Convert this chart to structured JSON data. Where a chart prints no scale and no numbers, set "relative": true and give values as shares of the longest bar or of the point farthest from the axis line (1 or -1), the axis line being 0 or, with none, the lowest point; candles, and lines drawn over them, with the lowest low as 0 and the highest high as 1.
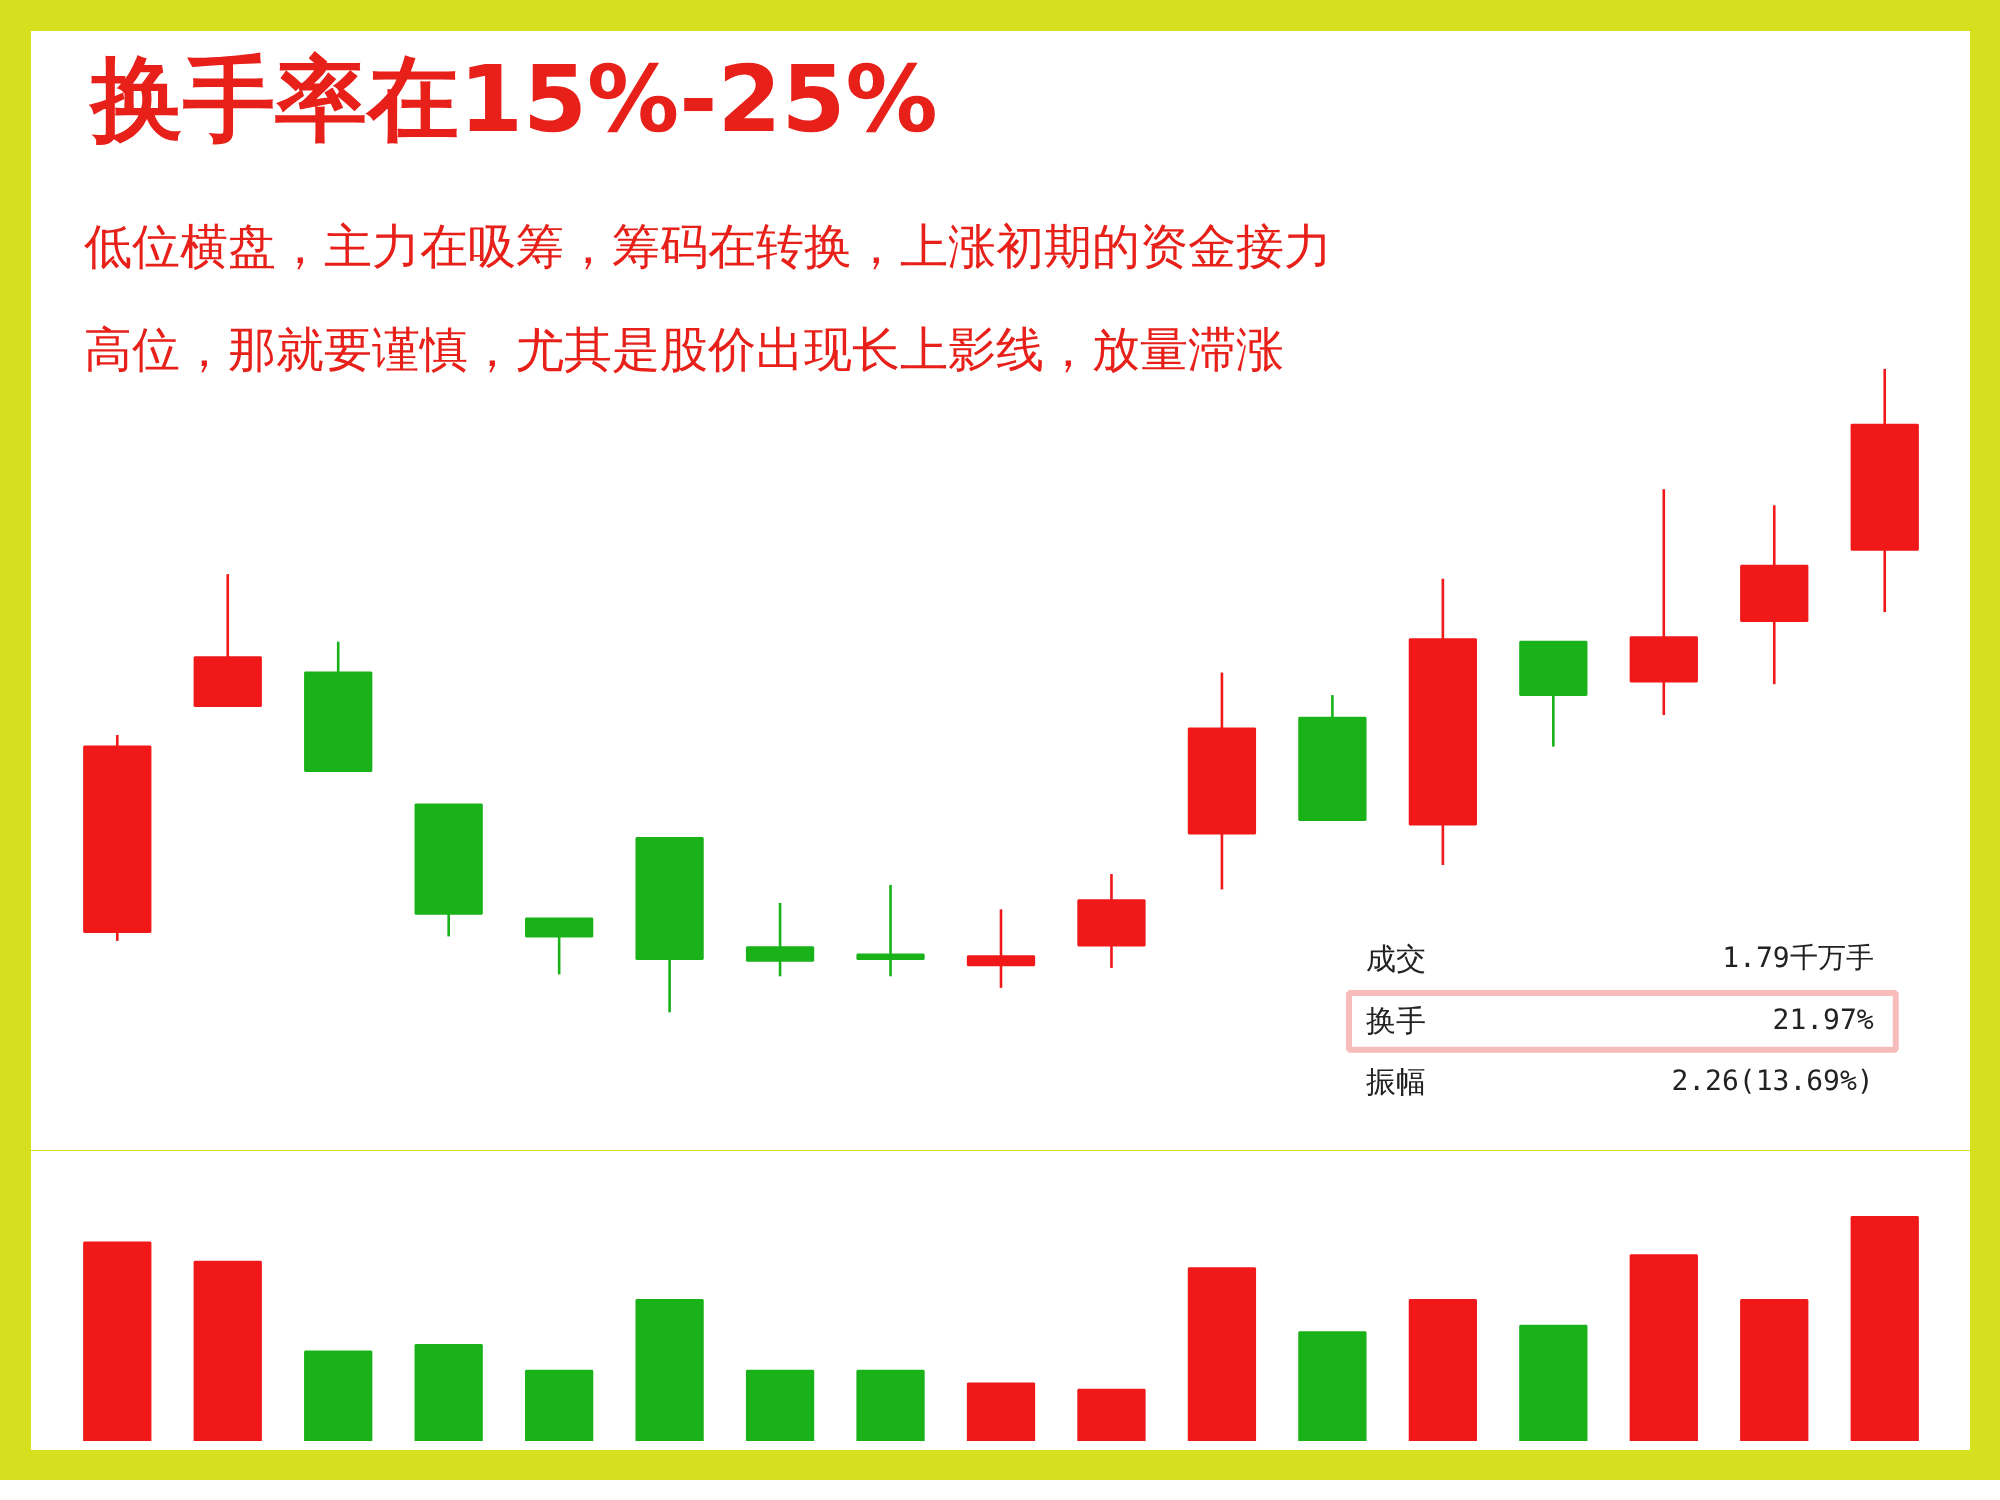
{
  "chart_data": [
    {
      "type": "candlestick",
      "title": "换手率在15%-25%",
      "subtitle": "低位横盘，主力在吸筹，筹码在转换，上涨初期的资金接力高位，那就要谨慎，尤其是股价出现长上影线，放量滞涨",
      "relative": true,
      "categories": [
        null,
        null,
        null,
        null,
        null,
        null,
        null,
        null,
        null,
        null,
        null,
        null,
        null,
        null,
        null,
        null,
        null
      ],
      "ohlc": [
        [
          0.125,
          0.431,
          0.111,
          0.413
        ],
        [
          0.476,
          0.681,
          0.476,
          0.552
        ],
        [
          0.528,
          0.576,
          0.375,
          0.375
        ],
        [
          0.323,
          0.323,
          0.118,
          0.153
        ],
        [
          0.146,
          0.146,
          0.059,
          0.118
        ],
        [
          0.271,
          0.271,
          0.0,
          0.083
        ],
        [
          0.101,
          0.17,
          0.056,
          0.08
        ],
        [
          0.09,
          0.198,
          0.056,
          0.083
        ],
        [
          0.073,
          0.16,
          0.038,
          0.087
        ],
        [
          0.104,
          0.215,
          0.069,
          0.174
        ],
        [
          0.278,
          0.528,
          0.191,
          0.441
        ],
        [
          0.458,
          0.493,
          0.299,
          0.299
        ],
        [
          0.292,
          0.674,
          0.229,
          0.58
        ],
        [
          0.576,
          0.576,
          0.413,
          0.493
        ],
        [
          0.514,
          0.813,
          0.462,
          0.583
        ],
        [
          0.608,
          0.788,
          0.51,
          0.694
        ],
        [
          0.719,
          1.0,
          0.622,
          0.913
        ]
      ],
      "colors": [
        "#f01818",
        "#f01818",
        "#19b219",
        "#19b219",
        "#19b219",
        "#19b219",
        "#19b219",
        "#19b219",
        "#f01818",
        "#f01818",
        "#f01818",
        "#19b219",
        "#f01818",
        "#19b219",
        "#f01818",
        "#f01818",
        "#f01818"
      ],
      "annotations": [
        "成交",
        "1.79千万手",
        "换手",
        "21.97%",
        "振幅",
        "2.26(13.69%)"
      ]
    },
    {
      "type": "bar",
      "relative": true,
      "categories": [
        null,
        null,
        null,
        null,
        null,
        null,
        null,
        null,
        null,
        null,
        null,
        null,
        null,
        null,
        null,
        null,
        null
      ],
      "values": [
        0.886,
        0.8,
        0.4,
        0.429,
        0.314,
        0.629,
        0.314,
        0.314,
        0.257,
        0.229,
        0.771,
        0.486,
        0.629,
        0.514,
        0.829,
        0.629,
        1.0
      ],
      "colors": [
        "#f01818",
        "#f01818",
        "#19b219",
        "#19b219",
        "#19b219",
        "#19b219",
        "#19b219",
        "#19b219",
        "#f01818",
        "#f01818",
        "#f01818",
        "#19b219",
        "#f01818",
        "#19b219",
        "#f01818",
        "#f01818",
        "#f01818"
      ]
    }
  ]
}
